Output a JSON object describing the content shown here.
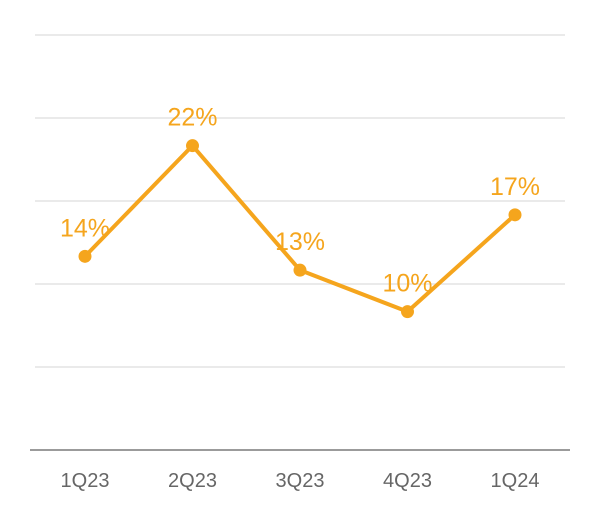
{
  "chart_data": {
    "type": "line",
    "title": "",
    "xlabel": "",
    "ylabel": "",
    "categories": [
      "1Q23",
      "2Q23",
      "3Q23",
      "4Q23",
      "1Q24"
    ],
    "values": [
      14,
      22,
      13,
      10,
      17
    ],
    "value_labels": [
      "14%",
      "22%",
      "13%",
      "10%",
      "17%"
    ],
    "ylim": [
      0,
      30
    ],
    "gridline_interval": 6,
    "grid": true,
    "legend_position": "none",
    "colors": {
      "line": "#F5A51D",
      "point": "#F5A51D",
      "value_label": "#F5A51D",
      "axis_tick_label": "#666666",
      "gridline": "#E4E4E4",
      "axis_line": "#9B9B9B",
      "background": "#FFFFFF"
    }
  }
}
